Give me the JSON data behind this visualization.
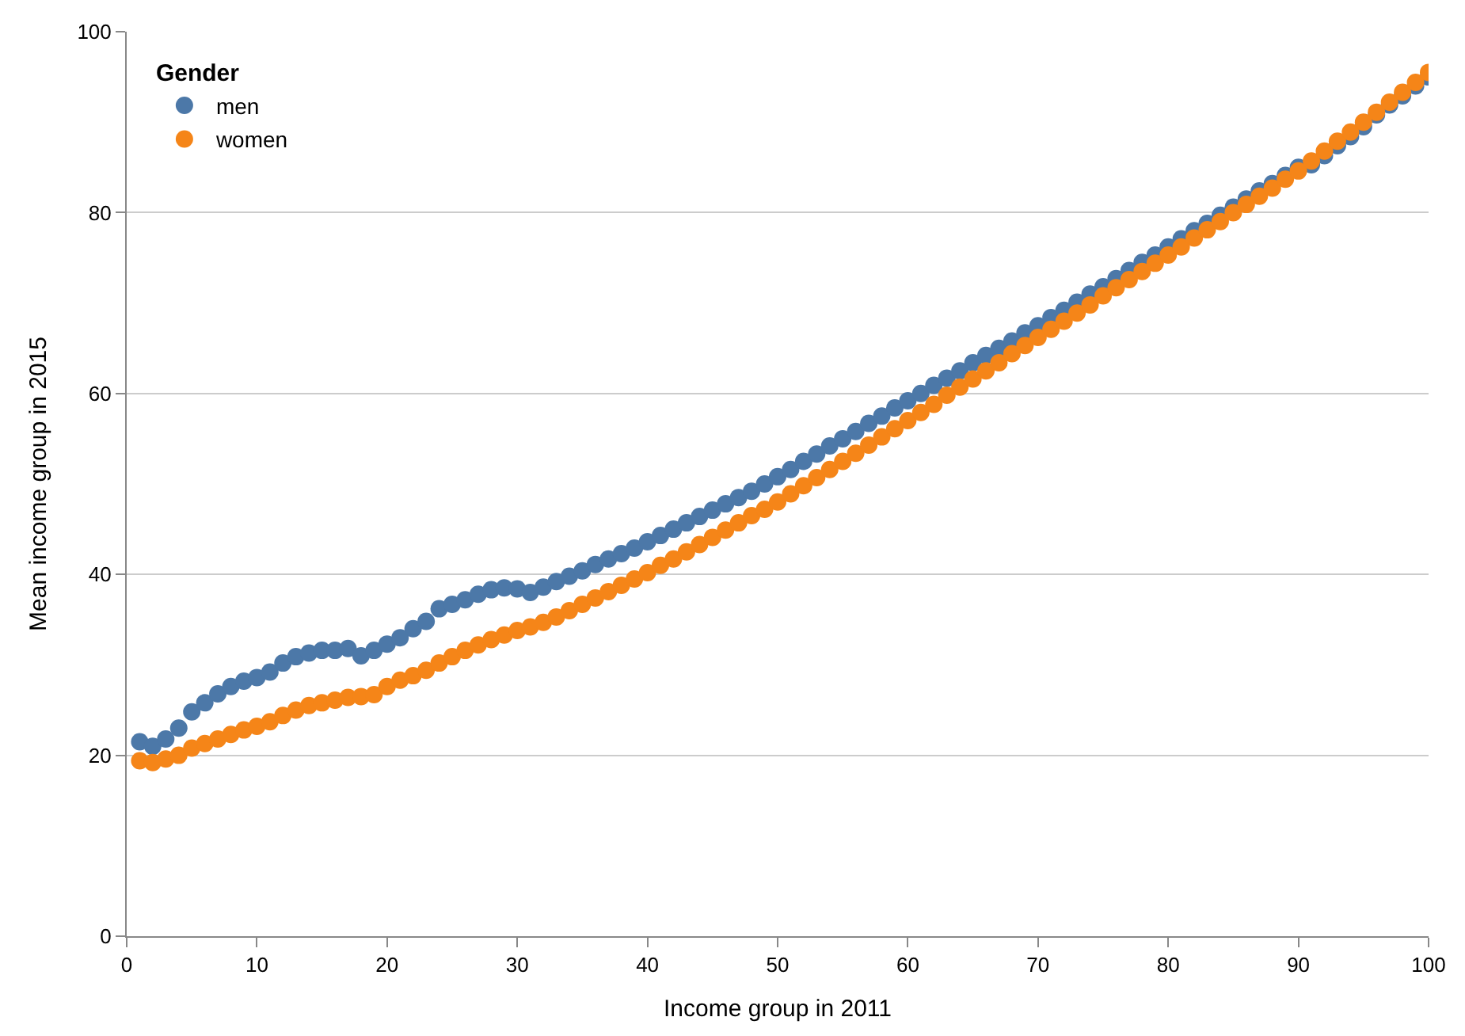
{
  "chart_data": {
    "type": "scatter",
    "xlabel": "Income group in 2011",
    "ylabel": "Mean income group in 2015",
    "legend_title": "Gender",
    "x": [
      1,
      2,
      3,
      4,
      5,
      6,
      7,
      8,
      9,
      10,
      11,
      12,
      13,
      14,
      15,
      16,
      17,
      18,
      19,
      20,
      21,
      22,
      23,
      24,
      25,
      26,
      27,
      28,
      29,
      30,
      31,
      32,
      33,
      34,
      35,
      36,
      37,
      38,
      39,
      40,
      41,
      42,
      43,
      44,
      45,
      46,
      47,
      48,
      49,
      50,
      51,
      52,
      53,
      54,
      55,
      56,
      57,
      58,
      59,
      60,
      61,
      62,
      63,
      64,
      65,
      66,
      67,
      68,
      69,
      70,
      71,
      72,
      73,
      74,
      75,
      76,
      77,
      78,
      79,
      80,
      81,
      82,
      83,
      84,
      85,
      86,
      87,
      88,
      89,
      90,
      91,
      92,
      93,
      94,
      95,
      96,
      97,
      98,
      99,
      100
    ],
    "series": [
      {
        "name": "men",
        "color": "#4c78a8",
        "values": [
          21.5,
          21.0,
          21.8,
          23.0,
          24.8,
          25.8,
          26.8,
          27.6,
          28.2,
          28.6,
          29.2,
          30.2,
          30.9,
          31.3,
          31.6,
          31.6,
          31.8,
          31.0,
          31.6,
          32.3,
          33.0,
          34.0,
          34.8,
          36.2,
          36.7,
          37.2,
          37.8,
          38.3,
          38.5,
          38.4,
          38.0,
          38.6,
          39.2,
          39.8,
          40.4,
          41.1,
          41.7,
          42.3,
          42.9,
          43.6,
          44.3,
          45.0,
          45.7,
          46.4,
          47.1,
          47.8,
          48.5,
          49.2,
          50.0,
          50.8,
          51.6,
          52.5,
          53.3,
          54.2,
          55.0,
          55.8,
          56.7,
          57.5,
          58.4,
          59.2,
          60.0,
          60.9,
          61.7,
          62.5,
          63.4,
          64.2,
          65.0,
          65.8,
          66.7,
          67.5,
          68.4,
          69.2,
          70.1,
          71.0,
          71.8,
          72.7,
          73.6,
          74.5,
          75.3,
          76.2,
          77.1,
          78.0,
          78.8,
          79.7,
          80.6,
          81.5,
          82.4,
          83.2,
          84.1,
          85.0,
          85.3,
          86.3,
          87.4,
          88.4,
          89.5,
          90.8,
          91.9,
          92.9,
          94.0,
          95.0
        ]
      },
      {
        "name": "women",
        "color": "#f58518",
        "values": [
          19.4,
          19.2,
          19.6,
          20.0,
          20.8,
          21.3,
          21.8,
          22.3,
          22.8,
          23.2,
          23.7,
          24.4,
          25.0,
          25.5,
          25.8,
          26.1,
          26.4,
          26.5,
          26.7,
          27.6,
          28.3,
          28.8,
          29.4,
          30.2,
          30.9,
          31.6,
          32.2,
          32.8,
          33.3,
          33.8,
          34.2,
          34.7,
          35.3,
          36.0,
          36.7,
          37.4,
          38.1,
          38.8,
          39.5,
          40.2,
          41.0,
          41.7,
          42.5,
          43.3,
          44.1,
          44.9,
          45.7,
          46.5,
          47.2,
          48.0,
          48.9,
          49.8,
          50.7,
          51.6,
          52.5,
          53.4,
          54.3,
          55.2,
          56.1,
          57.0,
          57.9,
          58.8,
          59.8,
          60.7,
          61.6,
          62.5,
          63.4,
          64.4,
          65.3,
          66.2,
          67.1,
          68.0,
          68.9,
          69.8,
          70.8,
          71.7,
          72.6,
          73.5,
          74.4,
          75.3,
          76.2,
          77.2,
          78.1,
          79.0,
          80.0,
          80.9,
          81.8,
          82.7,
          83.7,
          84.6,
          85.7,
          86.8,
          87.9,
          88.9,
          90.0,
          91.1,
          92.2,
          93.3,
          94.4,
          95.5
        ]
      }
    ],
    "xlim": [
      0,
      100
    ],
    "xticks": [
      0,
      10,
      20,
      30,
      40,
      50,
      60,
      70,
      80,
      90,
      100
    ],
    "ylim": [
      0,
      100
    ],
    "yticks": [
      0,
      20,
      40,
      60,
      80,
      100
    ],
    "grid": "y",
    "legend": "top left",
    "marker": "circle"
  }
}
